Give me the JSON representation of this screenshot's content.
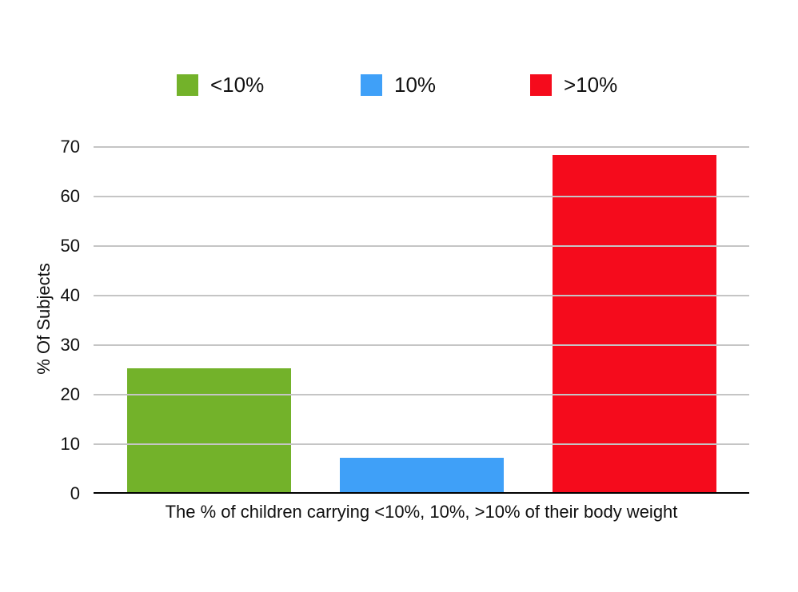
{
  "chart_data": {
    "type": "bar",
    "title": "",
    "categories": [
      "<10%",
      "10%",
      ">10%"
    ],
    "values": [
      25,
      7,
      68
    ],
    "colors": [
      "#73B22A",
      "#3FA0F8",
      "#F50B1C"
    ],
    "xlabel": "The % of children carrying <10%, 10%, >10% of their body weight",
    "ylabel": "% Of Subjects",
    "ylim": [
      0,
      70
    ],
    "yticks": [
      0,
      10,
      20,
      30,
      40,
      50,
      60,
      70
    ],
    "grid": true,
    "gridline_color": "#C5C5C5",
    "axis_line_color": "#000000",
    "legend": {
      "position": "top",
      "items": [
        {
          "label": "<10%",
          "color": "#73B22A"
        },
        {
          "label": "10%",
          "color": "#3FA0F8"
        },
        {
          "label": ">10%",
          "color": "#F50B1C"
        }
      ]
    }
  }
}
